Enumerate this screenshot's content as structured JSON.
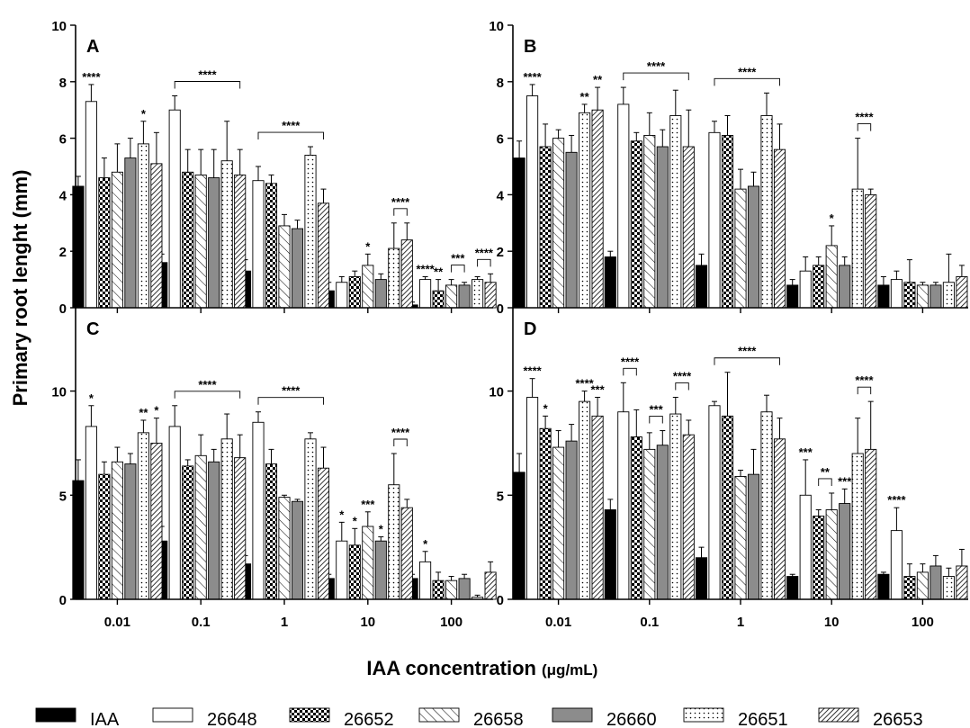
{
  "figure": {
    "ylabel": "Primary root lenght (mm)",
    "xlabel_main": "IAA concentration",
    "xlabel_unit": "(μg/mL)",
    "categories": [
      "0.01",
      "0.1",
      "1",
      "10",
      "100"
    ],
    "legend": [
      {
        "name": "IAA",
        "pattern": "solid-black"
      },
      {
        "name": "26648",
        "pattern": "white"
      },
      {
        "name": "26652",
        "pattern": "checker"
      },
      {
        "name": "26658",
        "pattern": "diag-light"
      },
      {
        "name": "26660",
        "pattern": "solid-gray"
      },
      {
        "name": "26651",
        "pattern": "dots"
      },
      {
        "name": "26653",
        "pattern": "diag-dense"
      }
    ],
    "colors": {
      "black": "#000000",
      "gray": "#8c8c8c",
      "white": "#ffffff"
    }
  },
  "chart_data": [
    {
      "type": "bar",
      "panel": "A",
      "ylim": [
        0,
        10
      ],
      "yticks": [
        "0",
        "2",
        "4",
        "6",
        "8",
        "10"
      ],
      "categories": [
        "0.01",
        "0.1",
        "1",
        "10",
        "100"
      ],
      "series": [
        {
          "name": "IAA",
          "values": [
            4.3,
            1.6,
            1.3,
            0.6,
            0.1
          ],
          "errors": [
            0.35,
            0.3,
            0.4,
            0.3,
            0.1
          ]
        },
        {
          "name": "26648",
          "values": [
            7.3,
            7.0,
            4.5,
            0.9,
            1.0
          ],
          "errors": [
            0.6,
            0.5,
            0.5,
            0.2,
            0.1
          ]
        },
        {
          "name": "26652",
          "values": [
            4.6,
            4.8,
            4.4,
            1.1,
            0.6
          ],
          "errors": [
            0.7,
            0.8,
            0.3,
            0.2,
            0.4
          ]
        },
        {
          "name": "26658",
          "values": [
            4.8,
            4.7,
            2.9,
            1.5,
            0.8
          ],
          "errors": [
            1.0,
            0.9,
            0.4,
            0.4,
            0.2
          ]
        },
        {
          "name": "26660",
          "values": [
            5.3,
            4.6,
            2.8,
            1.0,
            0.8
          ],
          "errors": [
            0.7,
            1.0,
            0.3,
            0.2,
            0.1
          ]
        },
        {
          "name": "26651",
          "values": [
            5.8,
            5.2,
            5.4,
            2.1,
            1.0
          ],
          "errors": [
            0.8,
            1.4,
            0.3,
            0.9,
            0.1
          ]
        },
        {
          "name": "26653",
          "values": [
            5.1,
            4.7,
            3.7,
            2.4,
            0.9
          ],
          "errors": [
            1.1,
            0.9,
            0.5,
            0.6,
            0.3
          ]
        }
      ],
      "annotations": [
        {
          "text": "****",
          "category": 0,
          "bar": 1
        },
        {
          "text": "*",
          "category": 0,
          "bar": 5
        },
        {
          "text": "****",
          "category": 1,
          "bracket": [
            1,
            6
          ]
        },
        {
          "text": "****",
          "category": 2,
          "bracket": [
            1,
            6
          ]
        },
        {
          "text": "*",
          "category": 3,
          "bar": 3
        },
        {
          "text": "****",
          "category": 3,
          "bracket": [
            5,
            6
          ]
        },
        {
          "text": "****",
          "category": 4,
          "bar": 1
        },
        {
          "text": "**",
          "category": 4,
          "bar": 2
        },
        {
          "text": "***",
          "category": 4,
          "bracket": [
            3,
            4
          ]
        },
        {
          "text": "****",
          "category": 4,
          "bracket": [
            5,
            6
          ]
        }
      ]
    },
    {
      "type": "bar",
      "panel": "B",
      "ylim": [
        0,
        10
      ],
      "yticks": [
        "0",
        "2",
        "4",
        "6",
        "8",
        "10"
      ],
      "categories": [
        "0.01",
        "0.1",
        "1",
        "10",
        "100"
      ],
      "series": [
        {
          "name": "IAA",
          "values": [
            5.3,
            1.8,
            1.5,
            0.8,
            0.8
          ],
          "errors": [
            0.6,
            0.2,
            0.4,
            0.2,
            0.3
          ]
        },
        {
          "name": "26648",
          "values": [
            7.5,
            7.2,
            6.2,
            1.3,
            1.0
          ],
          "errors": [
            0.4,
            0.6,
            0.4,
            0.5,
            0.3
          ]
        },
        {
          "name": "26652",
          "values": [
            5.7,
            5.9,
            6.1,
            1.5,
            0.9
          ],
          "errors": [
            0.8,
            0.3,
            0.7,
            0.3,
            0.8
          ]
        },
        {
          "name": "26658",
          "values": [
            6.0,
            6.1,
            4.2,
            2.2,
            0.8
          ],
          "errors": [
            0.3,
            0.8,
            0.7,
            0.7,
            0.1
          ]
        },
        {
          "name": "26660",
          "values": [
            5.5,
            5.7,
            4.3,
            1.5,
            0.8
          ],
          "errors": [
            0.6,
            0.6,
            0.5,
            0.3,
            0.1
          ]
        },
        {
          "name": "26651",
          "values": [
            6.9,
            6.8,
            6.8,
            4.2,
            0.9
          ],
          "errors": [
            0.3,
            0.9,
            0.8,
            1.8,
            1.0
          ]
        },
        {
          "name": "26653",
          "values": [
            7.0,
            5.7,
            5.6,
            4.0,
            1.1
          ],
          "errors": [
            0.8,
            1.3,
            0.9,
            0.2,
            0.4
          ]
        }
      ],
      "annotations": [
        {
          "text": "****",
          "category": 0,
          "bar": 1
        },
        {
          "text": "**",
          "category": 0,
          "bar": 5
        },
        {
          "text": "**",
          "category": 0,
          "bar": 6
        },
        {
          "text": "****",
          "category": 1,
          "bracket": [
            1,
            6
          ]
        },
        {
          "text": "****",
          "category": 2,
          "bracket": [
            1,
            6
          ]
        },
        {
          "text": "*",
          "category": 3,
          "bar": 3
        },
        {
          "text": "****",
          "category": 3,
          "bracket": [
            5,
            6
          ]
        }
      ]
    },
    {
      "type": "bar",
      "panel": "C",
      "ylim": [
        0,
        14
      ],
      "yticks": [
        "0",
        "5",
        "10"
      ],
      "categories": [
        "0.01",
        "0.1",
        "1",
        "10",
        "100"
      ],
      "series": [
        {
          "name": "IAA",
          "values": [
            5.7,
            2.8,
            1.7,
            1.0,
            1.0
          ],
          "errors": [
            1.0,
            0.7,
            0.4,
            0.2,
            0.2
          ]
        },
        {
          "name": "26648",
          "values": [
            8.3,
            8.3,
            8.5,
            2.8,
            1.8
          ],
          "errors": [
            1.0,
            1.0,
            0.5,
            0.9,
            0.5
          ]
        },
        {
          "name": "26652",
          "values": [
            6.0,
            6.4,
            6.5,
            2.6,
            0.9
          ],
          "errors": [
            0.6,
            0.3,
            0.7,
            0.8,
            0.4
          ]
        },
        {
          "name": "26658",
          "values": [
            6.6,
            6.9,
            4.9,
            3.5,
            0.9
          ],
          "errors": [
            0.7,
            1.0,
            0.1,
            0.7,
            0.2
          ]
        },
        {
          "name": "26660",
          "values": [
            6.5,
            6.6,
            4.7,
            2.8,
            1.0
          ],
          "errors": [
            0.5,
            0.6,
            0.1,
            0.2,
            0.2
          ]
        },
        {
          "name": "26651",
          "values": [
            8.0,
            7.7,
            7.7,
            5.5,
            0.1
          ],
          "errors": [
            0.6,
            1.2,
            0.3,
            1.5,
            0.1
          ]
        },
        {
          "name": "26653",
          "values": [
            7.5,
            6.8,
            6.3,
            4.4,
            1.3
          ],
          "errors": [
            1.2,
            1.1,
            1.0,
            0.4,
            0.5
          ]
        }
      ],
      "annotations": [
        {
          "text": "*",
          "category": 0,
          "bar": 1
        },
        {
          "text": "**",
          "category": 0,
          "bar": 5
        },
        {
          "text": "*",
          "category": 0,
          "bar": 6
        },
        {
          "text": "****",
          "category": 1,
          "bracket": [
            1,
            6
          ]
        },
        {
          "text": "****",
          "category": 2,
          "bracket": [
            1,
            6
          ]
        },
        {
          "text": "*",
          "category": 3,
          "bar": 1
        },
        {
          "text": "*",
          "category": 3,
          "bar": 2
        },
        {
          "text": "***",
          "category": 3,
          "bar": 3
        },
        {
          "text": "*",
          "category": 3,
          "bar": 4
        },
        {
          "text": "****",
          "category": 3,
          "bracket": [
            5,
            6
          ]
        },
        {
          "text": "*",
          "category": 4,
          "bar": 1
        }
      ]
    },
    {
      "type": "bar",
      "panel": "D",
      "ylim": [
        0,
        14
      ],
      "yticks": [
        "0",
        "5",
        "10"
      ],
      "categories": [
        "0.01",
        "0.1",
        "1",
        "10",
        "100"
      ],
      "series": [
        {
          "name": "IAA",
          "values": [
            6.1,
            4.3,
            2.0,
            1.1,
            1.2
          ],
          "errors": [
            0.9,
            0.5,
            0.5,
            0.1,
            0.1
          ]
        },
        {
          "name": "26648",
          "values": [
            9.7,
            9.0,
            9.3,
            5.0,
            3.3
          ],
          "errors": [
            0.9,
            1.4,
            0.2,
            1.7,
            1.1
          ]
        },
        {
          "name": "26652",
          "values": [
            8.2,
            7.8,
            8.8,
            4.0,
            1.1
          ],
          "errors": [
            0.6,
            1.3,
            2.1,
            0.3,
            0.6
          ]
        },
        {
          "name": "26658",
          "values": [
            7.3,
            7.2,
            5.9,
            4.3,
            1.3
          ],
          "errors": [
            0.8,
            0.8,
            0.3,
            0.8,
            0.4
          ]
        },
        {
          "name": "26660",
          "values": [
            7.6,
            7.4,
            6.0,
            4.6,
            1.6
          ],
          "errors": [
            0.8,
            0.7,
            1.2,
            0.7,
            0.5
          ]
        },
        {
          "name": "26651",
          "values": [
            9.5,
            8.9,
            9.0,
            7.0,
            1.1
          ],
          "errors": [
            0.5,
            0.8,
            0.8,
            1.7,
            0.4
          ]
        },
        {
          "name": "26653",
          "values": [
            8.8,
            7.9,
            7.7,
            7.2,
            1.6
          ],
          "errors": [
            0.9,
            0.7,
            1.0,
            2.3,
            0.8
          ]
        }
      ],
      "annotations": [
        {
          "text": "****",
          "category": 0,
          "bar": 1
        },
        {
          "text": "*",
          "category": 0,
          "bar": 2
        },
        {
          "text": "****",
          "category": 0,
          "bar": 5
        },
        {
          "text": "***",
          "category": 0,
          "bar": 6
        },
        {
          "text": "****",
          "category": 1,
          "bracket": [
            1,
            2
          ]
        },
        {
          "text": "***",
          "category": 1,
          "bracket": [
            3,
            4
          ]
        },
        {
          "text": "****",
          "category": 1,
          "bracket": [
            5,
            6
          ]
        },
        {
          "text": "****",
          "category": 2,
          "bracket": [
            1,
            6
          ]
        },
        {
          "text": "***",
          "category": 3,
          "bar": 1
        },
        {
          "text": "**",
          "category": 3,
          "bracket": [
            2,
            3
          ]
        },
        {
          "text": "***",
          "category": 3,
          "bar": 4
        },
        {
          "text": "****",
          "category": 3,
          "bracket": [
            5,
            6
          ]
        },
        {
          "text": "****",
          "category": 4,
          "bar": 1
        }
      ]
    }
  ]
}
